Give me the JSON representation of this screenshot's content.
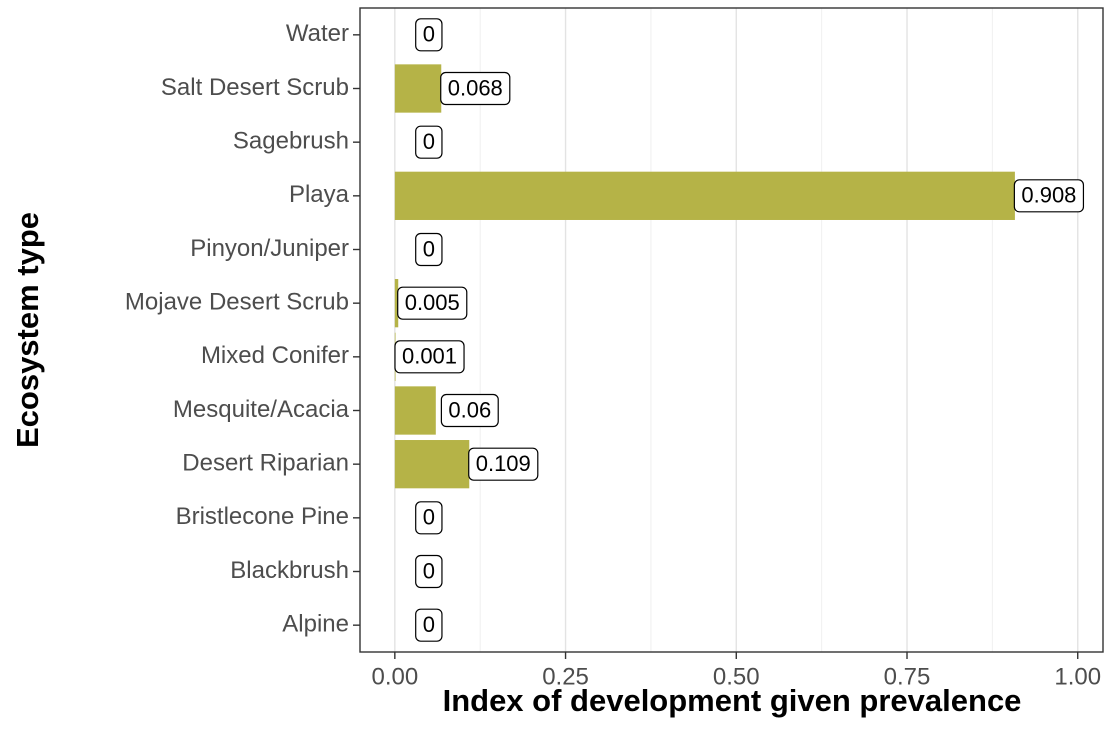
{
  "chart_data": {
    "type": "bar",
    "orientation": "horizontal",
    "xlabel": "Index of development given prevalence",
    "ylabel": "Ecosystem type",
    "categories": [
      "Water",
      "Salt Desert Scrub",
      "Sagebrush",
      "Playa",
      "Pinyon/Juniper",
      "Mojave Desert Scrub",
      "Mixed Conifer",
      "Mesquite/Acacia",
      "Desert Riparian",
      "Bristlecone Pine",
      "Blackbrush",
      "Alpine"
    ],
    "values": [
      0,
      0.068,
      0,
      0.908,
      0,
      0.005,
      0.001,
      0.06,
      0.109,
      0,
      0,
      0
    ],
    "color": "#b5b347",
    "xlim": [
      -0.051,
      1.037
    ],
    "xticks": [
      {
        "value": 0,
        "label": "0.00"
      },
      {
        "value": 0.25,
        "label": "0.25"
      },
      {
        "value": 0.5,
        "label": "0.50"
      },
      {
        "value": 0.75,
        "label": "0.75"
      },
      {
        "value": 1,
        "label": "1.00"
      }
    ],
    "grid": true
  }
}
